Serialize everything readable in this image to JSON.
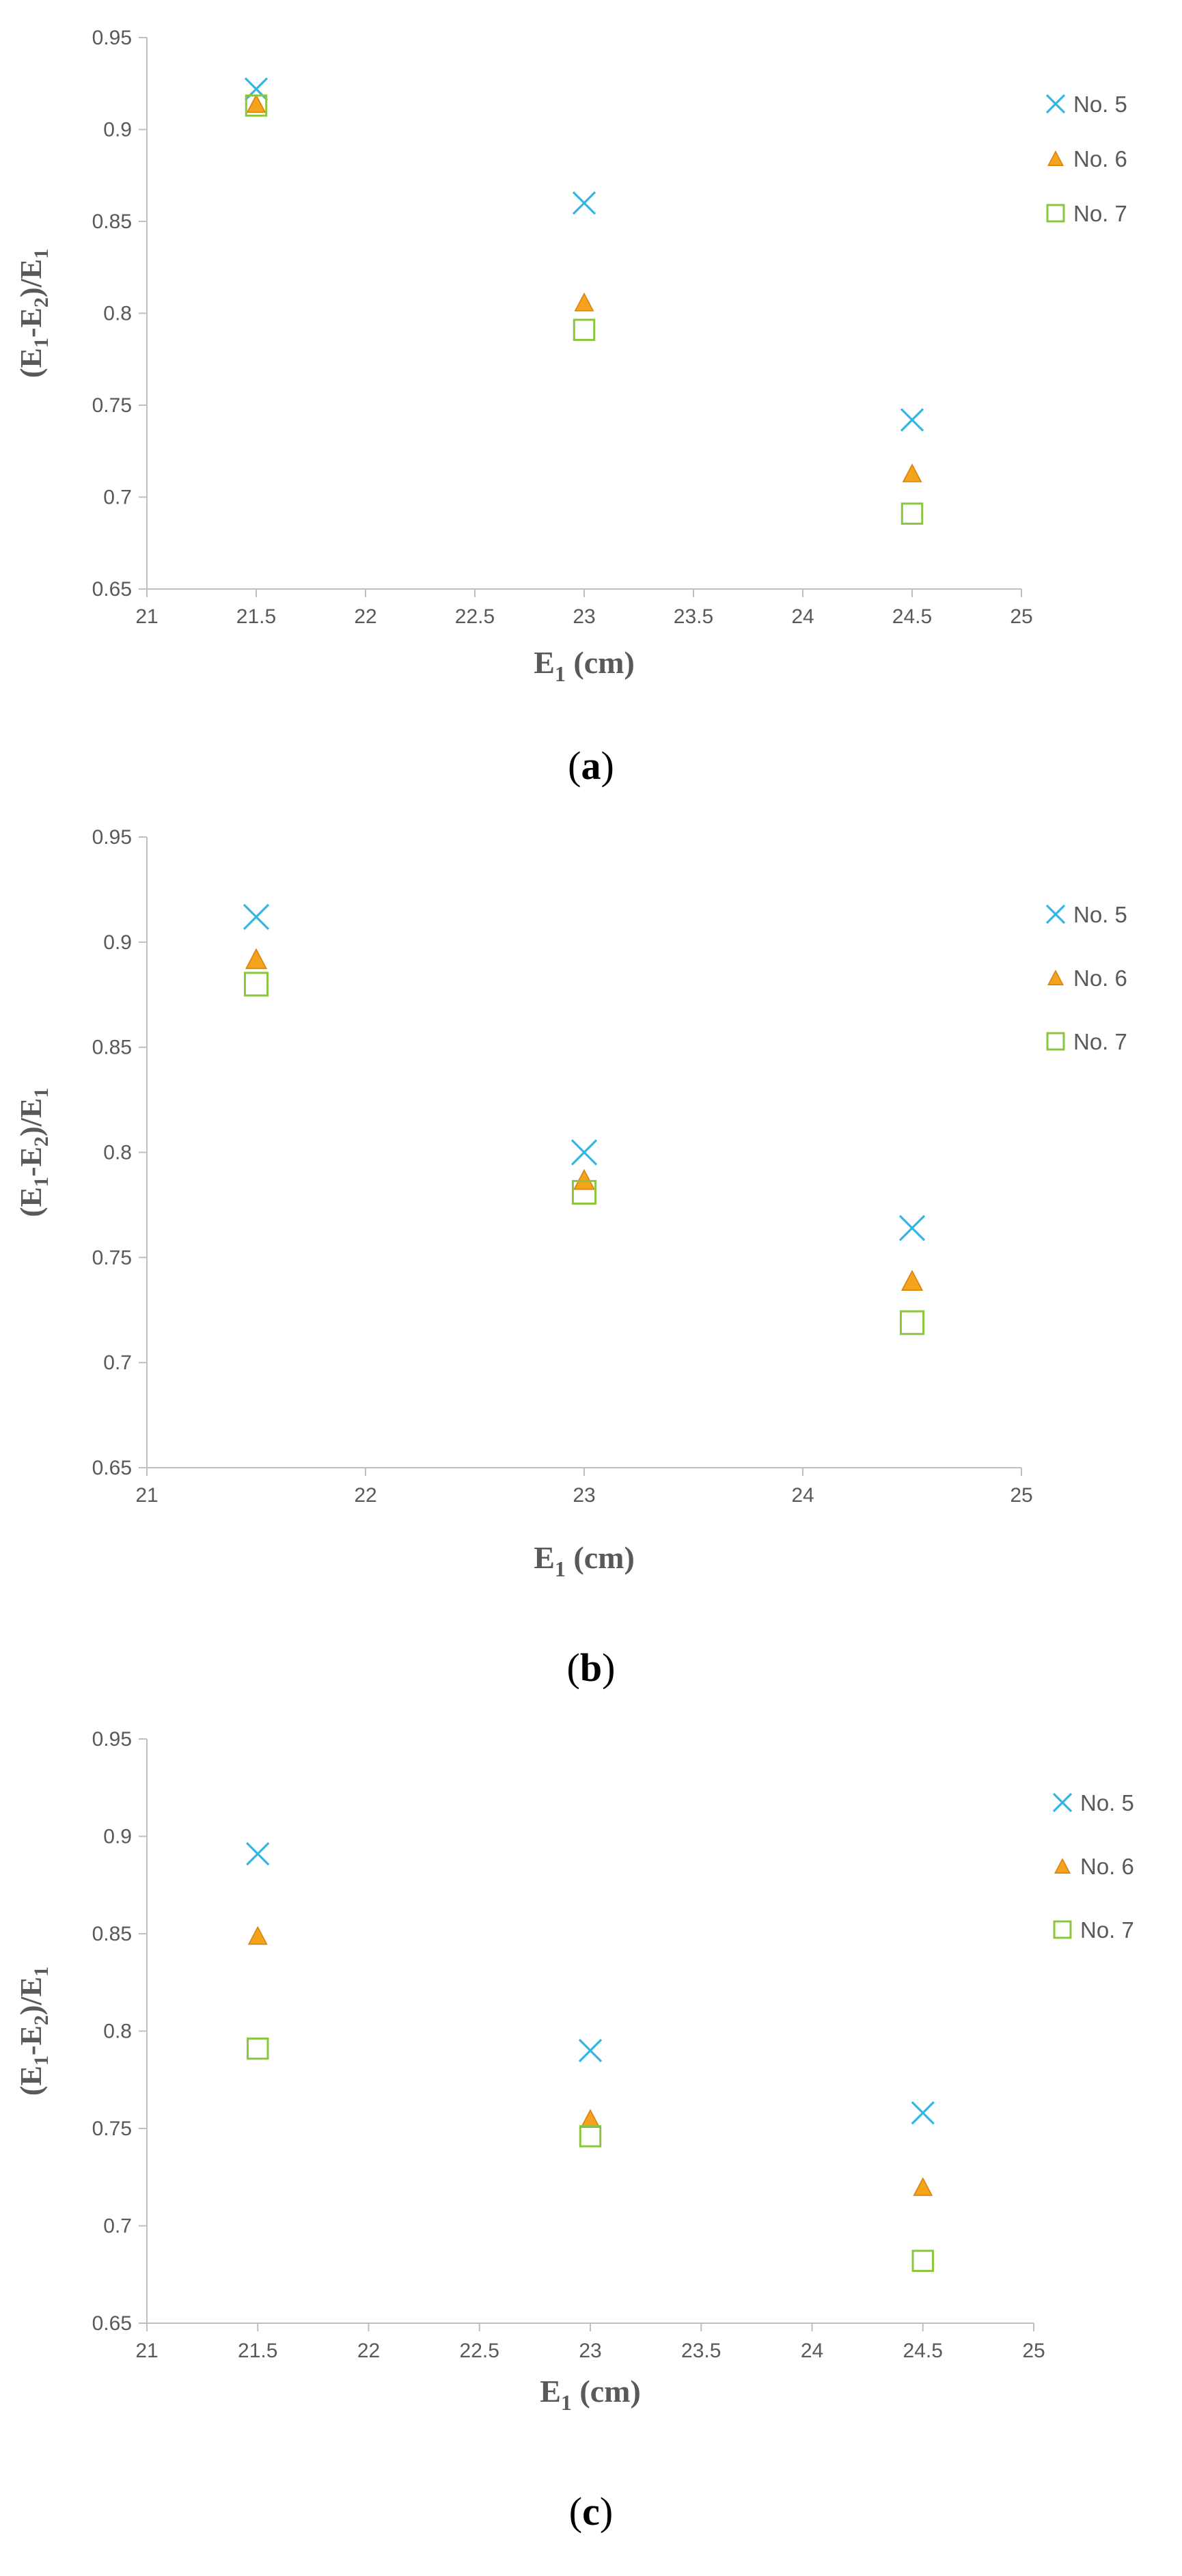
{
  "chart_data": [
    {
      "type": "scatter",
      "caption_letter": "a",
      "ylabel": {
        "open": "(E",
        "s1": "1",
        "mid": "-E",
        "s2": "2",
        "close": ")/E",
        "s3": "1"
      },
      "xlabel": {
        "base": "E",
        "sub": "1",
        "rest": " (cm)"
      },
      "xlim": [
        21,
        25
      ],
      "ylim": [
        0.65,
        0.95
      ],
      "xticks": [
        "21",
        "21.5",
        "22",
        "22.5",
        "23",
        "23.5",
        "24",
        "24.5",
        "25"
      ],
      "yticks": [
        "0.65",
        "0.7",
        "0.75",
        "0.8",
        "0.85",
        "0.9",
        "0.95"
      ],
      "grid": false,
      "legend_position": "right",
      "series": [
        {
          "name": "No. 5",
          "marker": "x",
          "color": "#34b6e4",
          "x": [
            21.5,
            23,
            24.5
          ],
          "y": [
            0.922,
            0.86,
            0.742
          ]
        },
        {
          "name": "No. 6",
          "marker": "triangle",
          "color": "#f5a21c",
          "x": [
            21.5,
            23,
            24.5
          ],
          "y": [
            0.914,
            0.806,
            0.713
          ]
        },
        {
          "name": "No. 7",
          "marker": "square",
          "color": "#8cc63f",
          "x": [
            21.5,
            23,
            24.5
          ],
          "y": [
            0.913,
            0.791,
            0.691
          ]
        }
      ]
    },
    {
      "type": "scatter",
      "caption_letter": "b",
      "ylabel": {
        "open": "(E",
        "s1": "1",
        "mid": "-E",
        "s2": "2",
        "close": ")/E",
        "s3": "1"
      },
      "xlabel": {
        "base": "E",
        "sub": "1",
        "rest": " (cm)"
      },
      "xlim": [
        21,
        25
      ],
      "ylim": [
        0.65,
        0.95
      ],
      "xticks": [
        "21",
        "22",
        "23",
        "24",
        "25"
      ],
      "yticks": [
        "0.65",
        "0.7",
        "0.75",
        "0.8",
        "0.85",
        "0.9",
        "0.95"
      ],
      "grid": false,
      "legend_position": "right",
      "series": [
        {
          "name": "No. 5",
          "marker": "x",
          "color": "#34b6e4",
          "x": [
            21.5,
            23,
            24.5
          ],
          "y": [
            0.912,
            0.8,
            0.764
          ]
        },
        {
          "name": "No. 6",
          "marker": "triangle",
          "color": "#f5a21c",
          "x": [
            21.5,
            23,
            24.5
          ],
          "y": [
            0.892,
            0.787,
            0.739
          ]
        },
        {
          "name": "No. 7",
          "marker": "square",
          "color": "#8cc63f",
          "x": [
            21.5,
            23,
            24.5
          ],
          "y": [
            0.88,
            0.781,
            0.719
          ]
        }
      ]
    },
    {
      "type": "scatter",
      "caption_letter": "c",
      "ylabel": {
        "open": "(E",
        "s1": "1",
        "mid": "-E",
        "s2": "2",
        "close": ")/E",
        "s3": "1"
      },
      "xlabel": {
        "base": "E",
        "sub": "1",
        "rest": " (cm)"
      },
      "xlim": [
        21,
        25
      ],
      "ylim": [
        0.65,
        0.95
      ],
      "xticks": [
        "21",
        "21.5",
        "22",
        "22.5",
        "23",
        "23.5",
        "24",
        "24.5",
        "25"
      ],
      "yticks": [
        "0.65",
        "0.7",
        "0.75",
        "0.8",
        "0.85",
        "0.9",
        "0.95"
      ],
      "grid": false,
      "legend_position": "right",
      "series": [
        {
          "name": "No. 5",
          "marker": "x",
          "color": "#34b6e4",
          "x": [
            21.5,
            23,
            24.5
          ],
          "y": [
            0.891,
            0.79,
            0.758
          ]
        },
        {
          "name": "No. 6",
          "marker": "triangle",
          "color": "#f5a21c",
          "x": [
            21.5,
            23,
            24.5
          ],
          "y": [
            0.849,
            0.755,
            0.72
          ]
        },
        {
          "name": "No. 7",
          "marker": "square",
          "color": "#8cc63f",
          "x": [
            21.5,
            23,
            24.5
          ],
          "y": [
            0.791,
            0.746,
            0.682
          ]
        }
      ]
    }
  ]
}
